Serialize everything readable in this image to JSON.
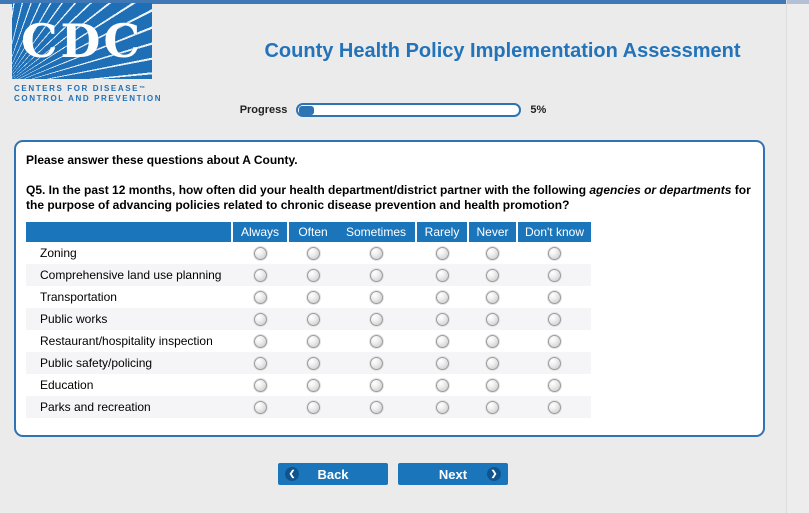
{
  "header": {
    "logo": {
      "acronym": "CDC",
      "caption_line1": "CENTERS FOR DISEASE",
      "caption_trademark": "™",
      "caption_line2": "CONTROL AND PREVENTION"
    },
    "title": "County Health Policy Implementation Assessment"
  },
  "progress": {
    "label": "Progress",
    "percent": 5,
    "percent_text": "5%"
  },
  "panel": {
    "intro": "Please answer these questions about A County.",
    "question": {
      "number": "Q5.",
      "before": " In the past 12 months, how often did your health department/district partner with the following ",
      "emphasis": "agencies or departments",
      "after": " for the purpose of advancing policies related to chronic disease prevention and health promotion?"
    },
    "table": {
      "columns": [
        "Always",
        "Often",
        "Sometimes",
        "Rarely",
        "Never",
        "Don't know"
      ],
      "rows": [
        "Zoning",
        "Comprehensive land use planning",
        "Transportation",
        "Public works",
        "Restaurant/hospitality inspection",
        "Public safety/policing",
        "Education",
        "Parks and recreation"
      ],
      "selected": null
    }
  },
  "nav": {
    "back_label": "Back",
    "next_label": "Next",
    "back_icon": "❮",
    "next_icon": "❯"
  },
  "colors": {
    "accent_blue": "#1b75bb",
    "title_blue": "#2273b9",
    "panel_border_blue": "#2e74b5",
    "logo_blue": "#1e6fb6",
    "page_background": "#ebebeb",
    "stripe_gray": "#f5f5f8"
  }
}
